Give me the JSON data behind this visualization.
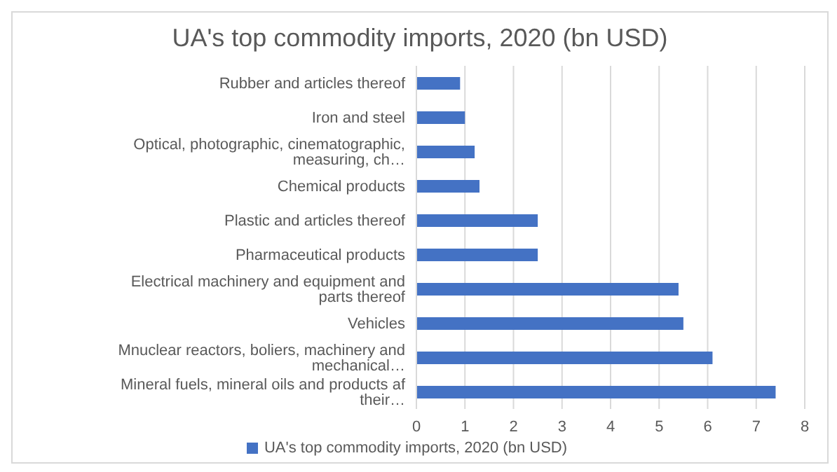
{
  "chart_data": {
    "type": "bar",
    "orientation": "horizontal",
    "title": "UA's top commodity imports, 2020 (bn USD)",
    "categories": [
      "Rubber and articles thereof",
      "Iron and steel",
      "Optical, photographic, cinematographic, measuring, ch…",
      "Chemical products",
      "Plastic and articles thereof",
      "Pharmaceutical products",
      "Electrical machinery and equipment and parts thereof",
      "Vehicles",
      "Mnuclear reactors, boliers, machinery and mechanical…",
      "Mineral fuels, mineral oils and products  af their…"
    ],
    "series": [
      {
        "name": "UA's top commodity imports, 2020 (bn USD)",
        "color": "#4472c4",
        "values": [
          0.9,
          1.0,
          1.2,
          1.3,
          2.5,
          2.5,
          5.4,
          5.5,
          6.1,
          7.4
        ]
      }
    ],
    "xlim": [
      0,
      8
    ],
    "xticks": [
      0,
      1,
      2,
      3,
      4,
      5,
      6,
      7,
      8
    ],
    "grid": "x",
    "legend": "bottom"
  }
}
